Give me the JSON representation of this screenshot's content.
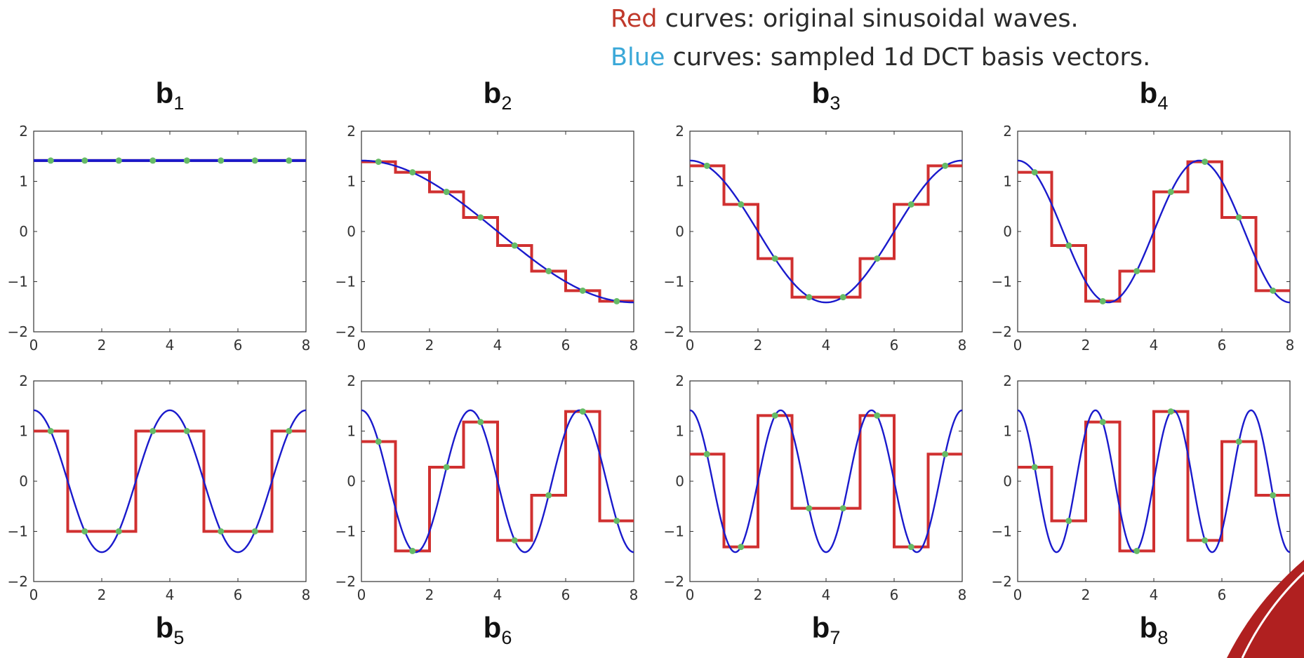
{
  "legend": {
    "red_word": "Red",
    "red_rest": " curves: original sinusoidal waves.",
    "blue_word": "Blue",
    "blue_rest": " curves: sampled 1d DCT basis vectors."
  },
  "colors": {
    "red": "#d03030",
    "blue": "#1a1acc",
    "sample_point": "#66bb66",
    "legend_red": "#c0392b",
    "legend_blue": "#3aa8d8",
    "corner": "#b02020"
  },
  "chart_data": [
    {
      "type": "line",
      "title": "b",
      "subscript": "1",
      "xlim": [
        0,
        8
      ],
      "ylim": [
        -2,
        2
      ],
      "xticks": [
        0,
        2,
        4,
        6,
        8
      ],
      "yticks": [
        -2,
        -1,
        0,
        1,
        2
      ],
      "k": 0,
      "series": [
        {
          "style": "continuous",
          "color": "blue"
        },
        {
          "style": "step",
          "color": "red",
          "values": [
            1.414,
            1.414,
            1.414,
            1.414,
            1.414,
            1.414,
            1.414,
            1.414
          ]
        }
      ],
      "sample_x": [
        0.5,
        1.5,
        2.5,
        3.5,
        4.5,
        5.5,
        6.5,
        7.5
      ]
    },
    {
      "type": "line",
      "title": "b",
      "subscript": "2",
      "xlim": [
        0,
        8
      ],
      "ylim": [
        -2,
        2
      ],
      "xticks": [
        0,
        2,
        4,
        6,
        8
      ],
      "yticks": [
        -2,
        -1,
        0,
        1,
        2
      ],
      "k": 1,
      "series": [
        {
          "style": "continuous",
          "color": "blue"
        },
        {
          "style": "step",
          "color": "red",
          "values": [
            1.39,
            1.18,
            0.79,
            0.28,
            -0.28,
            -0.79,
            -1.18,
            -1.39
          ]
        }
      ],
      "sample_x": [
        0.5,
        1.5,
        2.5,
        3.5,
        4.5,
        5.5,
        6.5,
        7.5
      ]
    },
    {
      "type": "line",
      "title": "b",
      "subscript": "3",
      "xlim": [
        0,
        8
      ],
      "ylim": [
        -2,
        2
      ],
      "xticks": [
        0,
        2,
        4,
        6,
        8
      ],
      "yticks": [
        -2,
        -1,
        0,
        1,
        2
      ],
      "k": 2,
      "series": [
        {
          "style": "continuous",
          "color": "blue"
        },
        {
          "style": "step",
          "color": "red",
          "values": [
            1.31,
            0.54,
            -0.54,
            -1.31,
            -1.31,
            -0.54,
            0.54,
            1.31
          ]
        }
      ],
      "sample_x": [
        0.5,
        1.5,
        2.5,
        3.5,
        4.5,
        5.5,
        6.5,
        7.5
      ]
    },
    {
      "type": "line",
      "title": "b",
      "subscript": "4",
      "xlim": [
        0,
        8
      ],
      "ylim": [
        -2,
        2
      ],
      "xticks": [
        0,
        2,
        4,
        6,
        8
      ],
      "yticks": [
        -2,
        -1,
        0,
        1,
        2
      ],
      "k": 3,
      "series": [
        {
          "style": "continuous",
          "color": "blue"
        },
        {
          "style": "step",
          "color": "red",
          "values": [
            1.18,
            -0.28,
            -1.39,
            -0.79,
            0.79,
            1.39,
            0.28,
            -1.18
          ]
        }
      ],
      "sample_x": [
        0.5,
        1.5,
        2.5,
        3.5,
        4.5,
        5.5,
        6.5,
        7.5
      ]
    },
    {
      "type": "line",
      "title": "b",
      "subscript": "5",
      "xlim": [
        0,
        8
      ],
      "ylim": [
        -2,
        2
      ],
      "xticks": [
        0,
        2,
        4,
        6,
        8
      ],
      "yticks": [
        -2,
        -1,
        0,
        1,
        2
      ],
      "k": 4,
      "series": [
        {
          "style": "continuous",
          "color": "blue"
        },
        {
          "style": "step",
          "color": "red",
          "values": [
            1.0,
            -1.0,
            -1.0,
            1.0,
            1.0,
            -1.0,
            -1.0,
            1.0
          ]
        }
      ],
      "sample_x": [
        0.5,
        1.5,
        2.5,
        3.5,
        4.5,
        5.5,
        6.5,
        7.5
      ]
    },
    {
      "type": "line",
      "title": "b",
      "subscript": "6",
      "xlim": [
        0,
        8
      ],
      "ylim": [
        -2,
        2
      ],
      "xticks": [
        0,
        2,
        4,
        6,
        8
      ],
      "yticks": [
        -2,
        -1,
        0,
        1,
        2
      ],
      "k": 5,
      "series": [
        {
          "style": "continuous",
          "color": "blue"
        },
        {
          "style": "step",
          "color": "red",
          "values": [
            0.79,
            -1.39,
            0.28,
            1.18,
            -1.18,
            -0.28,
            1.39,
            -0.79
          ]
        }
      ],
      "sample_x": [
        0.5,
        1.5,
        2.5,
        3.5,
        4.5,
        5.5,
        6.5,
        7.5
      ]
    },
    {
      "type": "line",
      "title": "b",
      "subscript": "7",
      "xlim": [
        0,
        8
      ],
      "ylim": [
        -2,
        2
      ],
      "xticks": [
        0,
        2,
        4,
        6,
        8
      ],
      "yticks": [
        -2,
        -1,
        0,
        1,
        2
      ],
      "k": 6,
      "series": [
        {
          "style": "continuous",
          "color": "blue"
        },
        {
          "style": "step",
          "color": "red",
          "values": [
            0.54,
            -1.31,
            1.31,
            -0.54,
            -0.54,
            1.31,
            -1.31,
            0.54
          ]
        }
      ],
      "sample_x": [
        0.5,
        1.5,
        2.5,
        3.5,
        4.5,
        5.5,
        6.5,
        7.5
      ]
    },
    {
      "type": "line",
      "title": "b",
      "subscript": "8",
      "xlim": [
        0,
        8
      ],
      "ylim": [
        -2,
        2
      ],
      "xticks": [
        0,
        2,
        4,
        6,
        8
      ],
      "yticks": [
        -2,
        -1,
        0,
        1,
        2
      ],
      "k": 7,
      "series": [
        {
          "style": "continuous",
          "color": "blue"
        },
        {
          "style": "step",
          "color": "red",
          "values": [
            0.28,
            -0.79,
            1.18,
            -1.39,
            1.39,
            -1.18,
            0.79,
            -0.28
          ]
        }
      ],
      "sample_x": [
        0.5,
        1.5,
        2.5,
        3.5,
        4.5,
        5.5,
        6.5,
        7.5
      ]
    }
  ]
}
